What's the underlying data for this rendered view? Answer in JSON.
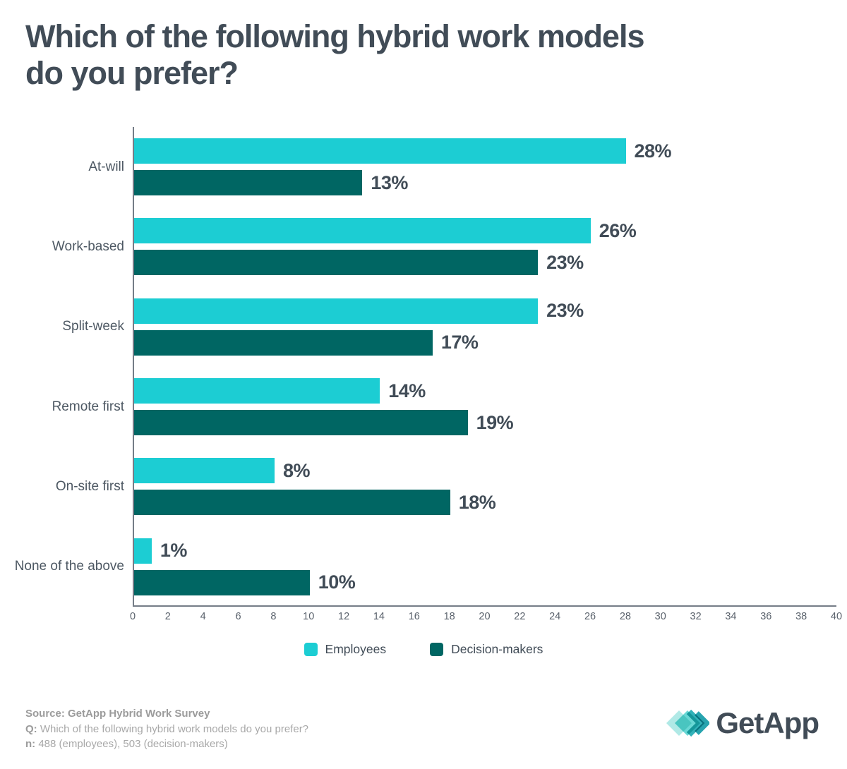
{
  "title": {
    "line1": "Which of the following hybrid work models",
    "line2": "do you prefer?"
  },
  "chart_data": {
    "type": "bar",
    "orientation": "horizontal",
    "title": "Which of the following hybrid work models do you prefer?",
    "categories": [
      "At-will",
      "Work-based",
      "Split-week",
      "Remote first",
      "On-site first",
      "None of the above"
    ],
    "series": [
      {
        "name": "Employees",
        "color": "#1CCDD3",
        "values": [
          28,
          26,
          23,
          14,
          8,
          1
        ]
      },
      {
        "name": "Decision-makers",
        "color": "#006663",
        "values": [
          13,
          23,
          17,
          19,
          18,
          10
        ]
      }
    ],
    "value_suffix": "%",
    "xlim": [
      0,
      40
    ],
    "x_ticks": [
      0,
      2,
      4,
      6,
      8,
      10,
      12,
      14,
      16,
      18,
      20,
      22,
      24,
      26,
      28,
      30,
      32,
      34,
      36,
      38,
      40
    ],
    "grid": false,
    "legend_position": "bottom",
    "axis_color": "#757D87",
    "label_color": "#414C57"
  },
  "footer": {
    "source_bold": "Source: GetApp Hybrid Work Survey",
    "q_label": "Q:",
    "q_text": "Which of the following hybrid work models do you prefer?",
    "n_label": "n:",
    "n_text": "488 (employees), 503 (decision-makers)"
  },
  "logo": {
    "text": "GetApp",
    "mark_colors": [
      "#B0E9E6",
      "#4FD1CE",
      "#1BAAB2",
      "#0F9AA6"
    ]
  }
}
